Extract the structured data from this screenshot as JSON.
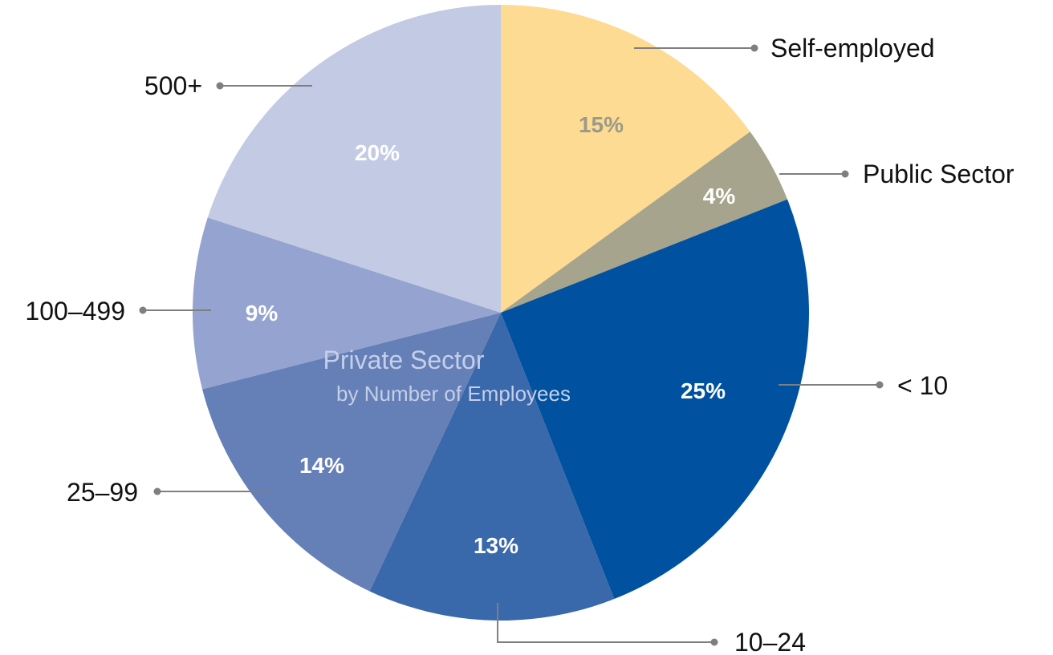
{
  "chart_data": {
    "type": "pie",
    "center_title": "Private Sector",
    "center_subtitle": "by Number of Employees",
    "slices": [
      {
        "name": "Self-employed",
        "value": 15,
        "label": "15%",
        "color": "#fedb92",
        "label_color": "#9a9a8c"
      },
      {
        "name": "Public Sector",
        "value": 4,
        "label": "4%",
        "color": "#a6a48c",
        "label_color": "#ffffff"
      },
      {
        "name": "< 10",
        "value": 25,
        "label": "25%",
        "color": "#0052a0",
        "label_color": "#ffffff"
      },
      {
        "name": "10–24",
        "value": 13,
        "label": "13%",
        "color": "#3968ab",
        "label_color": "#ffffff"
      },
      {
        "name": "25–99",
        "value": 14,
        "label": "14%",
        "color": "#657fb7",
        "label_color": "#ffffff"
      },
      {
        "name": "100–499",
        "value": 9,
        "label": "9%",
        "color": "#94a3cf",
        "label_color": "#ffffff"
      },
      {
        "name": "500+",
        "value": 20,
        "label": "20%",
        "color": "#c3cbe4",
        "label_color": "#ffffff"
      }
    ]
  }
}
